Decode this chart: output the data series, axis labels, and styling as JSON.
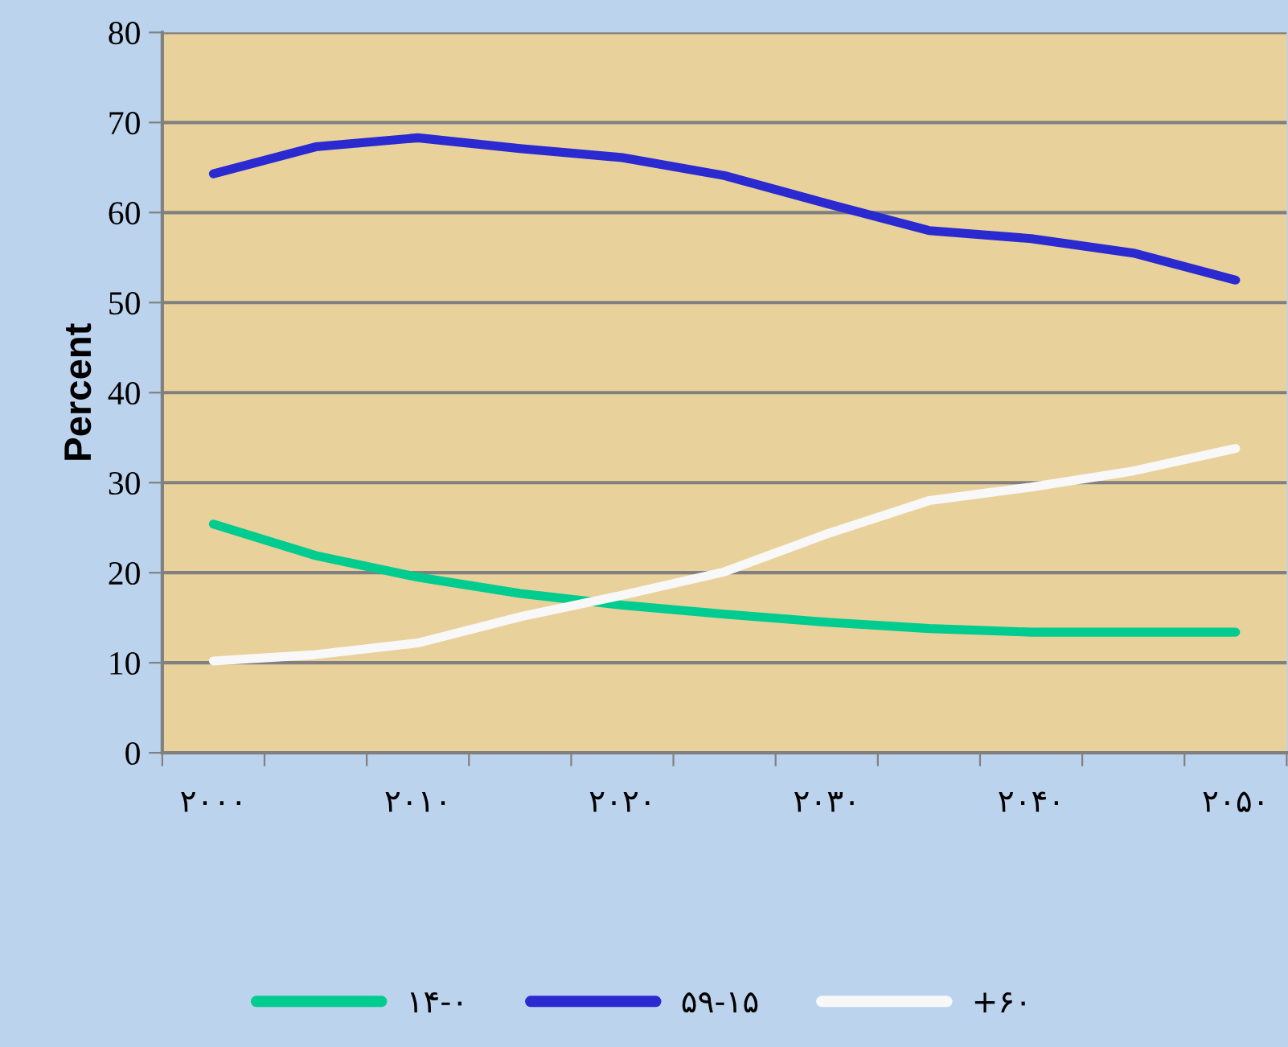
{
  "chart_data": {
    "type": "line",
    "ylabel": "Percent",
    "categories": [
      "۲۰۰۰",
      null,
      "۲۰۱۰",
      null,
      "۲۰۲۰",
      null,
      "۲۰۳۰",
      null,
      "۲۰۴۰",
      null,
      "۲۰۵۰"
    ],
    "series": [
      {
        "name": "۱۴-۰",
        "color": "#00cc8f",
        "values": [
          25.4,
          21.9,
          19.5,
          17.7,
          16.4,
          15.4,
          14.5,
          13.8,
          13.4,
          13.4,
          13.4
        ]
      },
      {
        "name": "۵۹-۱۵",
        "color": "#2a2ad0",
        "values": [
          64.3,
          67.3,
          68.3,
          67.1,
          66.1,
          64.1,
          61.0,
          58.0,
          57.1,
          55.5,
          52.5
        ]
      },
      {
        "name": "+۶۰",
        "color": "#f8f8f8",
        "values": [
          10.2,
          10.9,
          12.2,
          15.1,
          17.5,
          20.1,
          24.3,
          28.0,
          29.5,
          31.3,
          33.8
        ]
      }
    ],
    "ylim": [
      0,
      80
    ],
    "yticks": [
      0,
      10,
      20,
      30,
      40,
      50,
      60,
      70,
      80
    ],
    "grid": "y",
    "legend": "bottom",
    "marker": "none",
    "line_style": "solid"
  }
}
